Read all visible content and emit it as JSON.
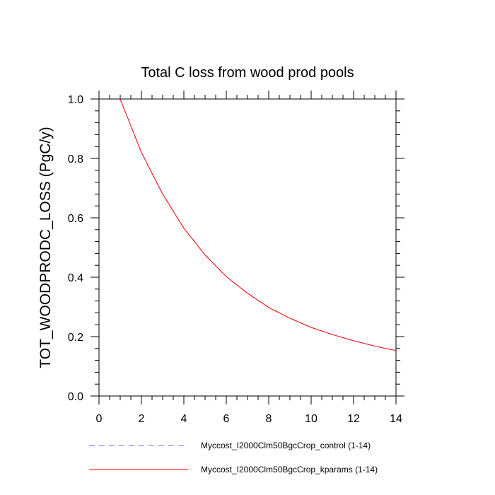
{
  "chart_data": {
    "type": "line",
    "title": "Total C loss from wood prod pools",
    "xlabel": "",
    "ylabel": "TOT_WOODPRODC_LOSS  (PgC/y)",
    "xlim": [
      0,
      14
    ],
    "ylim": [
      0.0,
      1.0
    ],
    "x_ticks": [
      0,
      2,
      4,
      6,
      8,
      10,
      12,
      14
    ],
    "x_tick_labels": [
      "0",
      "2",
      "4",
      "6",
      "8",
      "10",
      "12",
      "14"
    ],
    "y_ticks": [
      0.0,
      0.2,
      0.4,
      0.6,
      0.8,
      1.0
    ],
    "y_tick_labels": [
      "0.0",
      "0.2",
      "0.4",
      "0.6",
      "0.8",
      "1.0"
    ],
    "grid": false,
    "legend_position": "bottom",
    "x": [
      1,
      2,
      3,
      4,
      5,
      6,
      7,
      8,
      9,
      10,
      11,
      12,
      13,
      14
    ],
    "series": [
      {
        "name": "Myccost_I2000Clm50BgcCrop_control (1-14)",
        "color": "#6a6aff",
        "style": "dashed",
        "values": [
          1.0,
          0.82,
          0.68,
          0.565,
          0.475,
          0.402,
          0.346,
          0.298,
          0.262,
          0.231,
          0.207,
          0.186,
          0.168,
          0.153
        ]
      },
      {
        "name": "Myccost_I2000Clm50BgcCrop_kparams (1-14)",
        "color": "#ff0000",
        "style": "solid",
        "values": [
          1.0,
          0.82,
          0.68,
          0.565,
          0.475,
          0.402,
          0.346,
          0.298,
          0.262,
          0.231,
          0.207,
          0.186,
          0.168,
          0.153
        ]
      }
    ]
  }
}
